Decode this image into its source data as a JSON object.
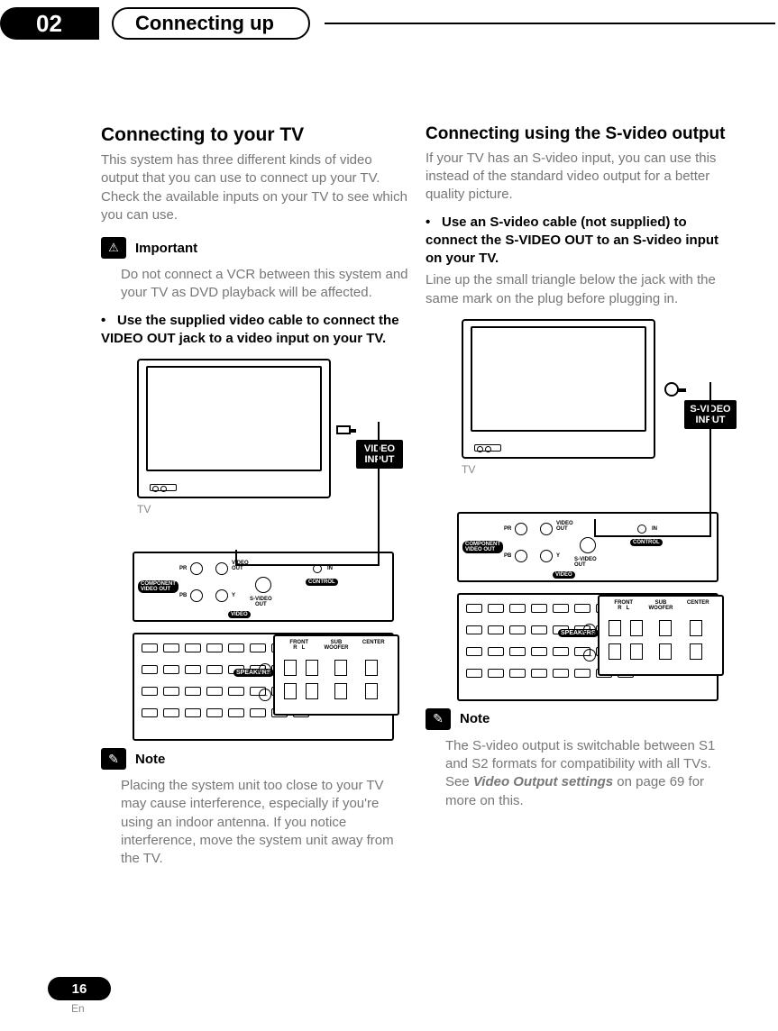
{
  "banner": {
    "chapter_number": "02",
    "chapter_title": "Connecting up"
  },
  "left": {
    "heading": "Connecting to your TV",
    "intro": "This system has three different kinds of video output that you can use to connect up your TV. Check the available inputs on your TV to see which you can use.",
    "important_label": "Important",
    "important_text": "Do not connect a VCR between this system and your TV as DVD playback will be affected.",
    "instruction_bullet": "•",
    "instruction": "Use the supplied video cable to connect the VIDEO OUT jack to a video input on your TV.",
    "diagram": {
      "tv_label": "TV",
      "badge_line1": "VIDEO",
      "badge_line2": "INPUT",
      "panel": {
        "component_label": "COMPONENT\nVIDEO OUT",
        "pr": "PR",
        "pb": "PB",
        "y": "Y",
        "video_out": "VIDEO\nOUT",
        "svideo_out": "S-VIDEO\nOUT",
        "video_group": "VIDEO",
        "control": "CONTROL",
        "in": "IN",
        "speakers": "SPEAKERS",
        "front": "FRONT",
        "r": "R",
        "l": "L",
        "subwoofer": "SUB\nWOOFER",
        "center": "CENTER"
      }
    },
    "note_label": "Note",
    "note_text": "Placing the system unit too close to your TV may cause interference, especially if you're using an indoor antenna. If you notice interference, move the system unit away from the TV."
  },
  "right": {
    "heading": "Connecting using the S-video output",
    "intro": "If your TV has an S-video input, you can use this instead of the standard video output for a better quality picture.",
    "instruction_bullet": "•",
    "instruction": "Use an S-video cable (not supplied) to connect the S-VIDEO OUT to an S-video input on your TV.",
    "instruction_after": "Line up the small triangle below the jack with the same mark on the plug before plugging in.",
    "diagram": {
      "tv_label": "TV",
      "badge_line1": "S-VIDEO",
      "badge_line2": "INPUT",
      "panel": {
        "component_label": "COMPONENT\nVIDEO OUT",
        "pr": "PR",
        "pb": "PB",
        "y": "Y",
        "video_out": "VIDEO\nOUT",
        "svideo_out": "S-VIDEO\nOUT",
        "video_group": "VIDEO",
        "control": "CONTROL",
        "in": "IN",
        "speakers": "SPEAKERS",
        "front": "FRONT",
        "r": "R",
        "l": "L",
        "subwoofer": "SUB\nWOOFER",
        "center": "CENTER"
      }
    },
    "note_label": "Note",
    "note_text_1": "The S-video output is switchable between S1 and S2 formats for compatibility with all TVs. See ",
    "note_ref": "Video Output settings",
    "note_text_2": " on page 69 for more on this."
  },
  "footer": {
    "page_number": "16",
    "lang": "En"
  },
  "style": {
    "heading_fontsize_pt": 16,
    "body_fontsize_pt": 11,
    "body_color": "#777777",
    "accent_black": "#000000",
    "page_bg": "#ffffff"
  }
}
